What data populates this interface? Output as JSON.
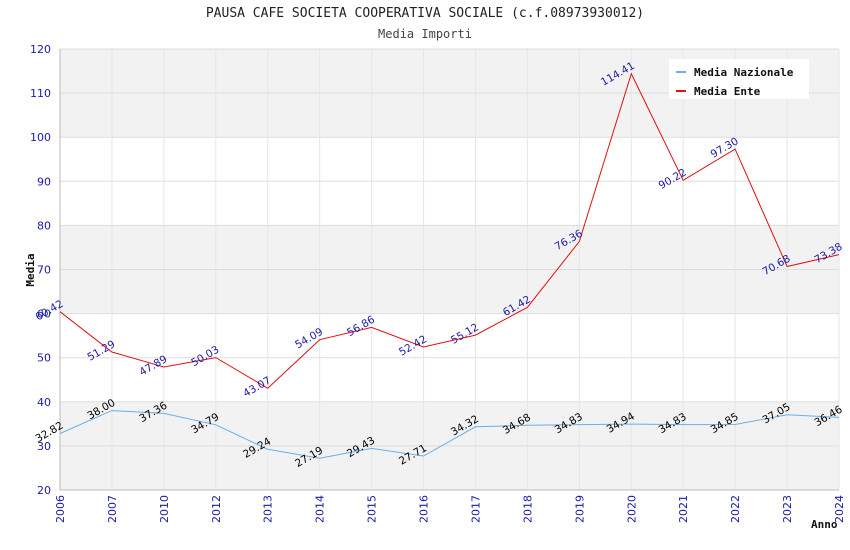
{
  "chart_data": {
    "type": "line",
    "title": "PAUSA CAFE SOCIETA COOPERATIVA SOCIALE (c.f.08973930012)",
    "subtitle": "Media Importi",
    "xlabel": "Anno",
    "ylabel": "Media",
    "ylim": [
      20,
      120
    ],
    "yticks": [
      20,
      30,
      40,
      50,
      60,
      70,
      80,
      90,
      100,
      110,
      120
    ],
    "categories": [
      "2006",
      "2007",
      "2010",
      "2012",
      "2013",
      "2014",
      "2015",
      "2016",
      "2017",
      "2018",
      "2019",
      "2020",
      "2021",
      "2022",
      "2023",
      "2024"
    ],
    "series": [
      {
        "name": "Media Nazionale",
        "color": "#6aaee8",
        "label_color": "#000000",
        "values": [
          32.82,
          38.0,
          37.36,
          34.79,
          29.24,
          27.19,
          29.43,
          27.71,
          34.32,
          34.68,
          34.83,
          34.94,
          34.83,
          34.85,
          37.05,
          36.46
        ],
        "labels": [
          "32.82",
          "38.00",
          "37.36",
          "34.79",
          "29.24",
          "27.19",
          "29.43",
          "27.71",
          "34.32",
          "34.68",
          "34.83",
          "34.94",
          "34.83",
          "34.85",
          "37.05",
          "36.46"
        ]
      },
      {
        "name": "Media Ente",
        "color": "#e01010",
        "label_color": "#1a1aa6",
        "values": [
          60.42,
          51.29,
          47.89,
          50.03,
          43.07,
          54.09,
          56.86,
          52.42,
          55.12,
          61.42,
          76.36,
          114.41,
          90.22,
          97.3,
          70.68,
          73.38
        ],
        "labels": [
          "60.42",
          "51.29",
          "47.89",
          "50.03",
          "43.07",
          "54.09",
          "56.86",
          "52.42",
          "55.12",
          "61.42",
          "76.36",
          "114.41",
          "90.22",
          "97.30",
          "70.68",
          "73.38"
        ]
      }
    ],
    "legend_position": "top-right",
    "band_colors": [
      "#f2f2f2",
      "#ffffff"
    ]
  }
}
